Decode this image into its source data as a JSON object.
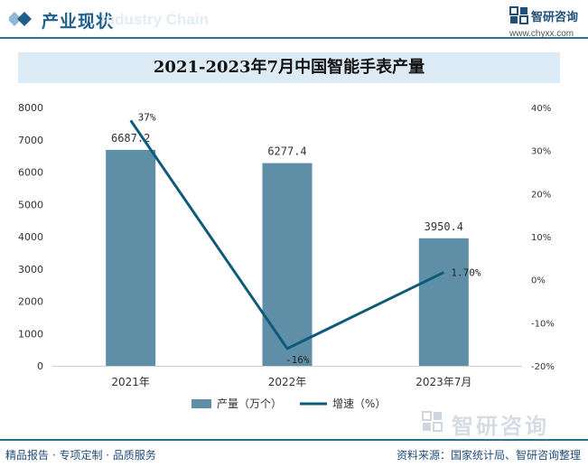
{
  "header": {
    "title": "产业现状",
    "ghost_text": "Industry Chain"
  },
  "logo": {
    "name": "智研咨询",
    "url": "www.chyxx.com",
    "watermark": "智研咨询"
  },
  "chart_data": {
    "type": "bar",
    "title": "2021-2023年7月中国智能手表产量",
    "categories": [
      "2021年",
      "2022年",
      "2023年7月"
    ],
    "series": [
      {
        "name": "产量（万个）",
        "type": "bar",
        "values": [
          6687.2,
          6277.4,
          3950.4
        ],
        "labels": [
          "6687.2",
          "6277.4",
          "3950.4"
        ],
        "color": "#5e8fa7"
      },
      {
        "name": "增速（%）",
        "type": "line",
        "values": [
          37,
          -16,
          1.7
        ],
        "labels": [
          "37%",
          "-16%",
          "1.70%"
        ],
        "color": "#0d5a7a"
      }
    ],
    "y_left": {
      "min": 0,
      "max": 8000,
      "ticks": [
        "0",
        "1000",
        "2000",
        "3000",
        "4000",
        "5000",
        "6000",
        "7000",
        "8000"
      ]
    },
    "y_right": {
      "min": -20,
      "max": 40,
      "ticks": [
        "-20%",
        "-10%",
        "0%",
        "10%",
        "20%",
        "30%",
        "40%"
      ]
    },
    "legend_position": "bottom",
    "grid": false
  },
  "footer": {
    "left": "精品报告 · 专项定制 · 品质服务",
    "right": "资料来源：国家统计局、智研咨询整理"
  }
}
